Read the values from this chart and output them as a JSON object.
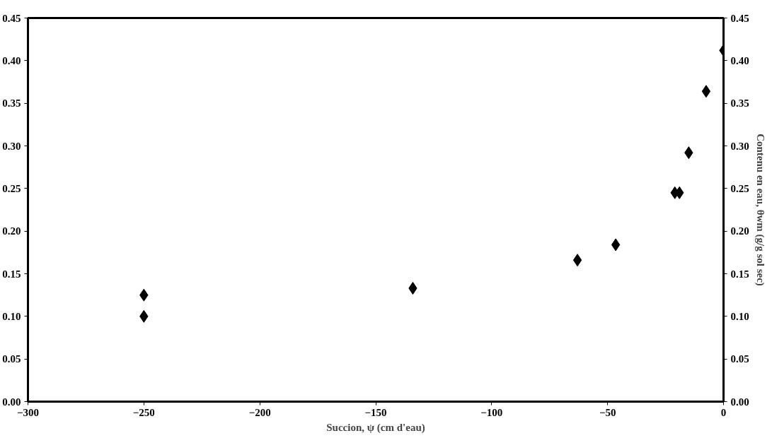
{
  "chart_data": {
    "type": "scatter",
    "xlabel": "Succion, ψ (cm d'eau)",
    "y2label": "Contenu en eau, θwm (g/g sol sec)",
    "x": [
      -250,
      -250,
      -134,
      -63,
      -46.5,
      -21,
      -19,
      -15,
      -7.5,
      0
    ],
    "series": [
      {
        "color": "#000000",
        "values": [
          0.125,
          0.1,
          0.133,
          0.166,
          0.184,
          0.245,
          0.245,
          0.292,
          0.364,
          0.412
        ]
      }
    ],
    "marker": "diamond",
    "grid": false,
    "xlim": [
      -300,
      0
    ],
    "xticks": [
      -300,
      -250,
      -200,
      -150,
      -100,
      -50,
      0
    ],
    "ylim": [
      0,
      0.45
    ],
    "yticks": [
      {
        "value": 0,
        "label": "0.00"
      },
      {
        "value": 0.05,
        "label": "0.05"
      },
      {
        "value": 0.1,
        "label": "0.10"
      },
      {
        "value": 0.15,
        "label": "0.15"
      },
      {
        "value": 0.2,
        "label": "0.20"
      },
      {
        "value": 0.25,
        "label": "0.25"
      },
      {
        "value": 0.3,
        "label": "0.30"
      },
      {
        "value": 0.35,
        "label": "0.35"
      },
      {
        "value": 0.4,
        "label": "0.40"
      },
      {
        "value": 0.45,
        "label": "0.45"
      }
    ],
    "y2lim": [
      0,
      0.45
    ],
    "y2ticks": [
      {
        "value": 0,
        "label": "0.00"
      },
      {
        "value": 0.05,
        "label": "0.05"
      },
      {
        "value": 0.1,
        "label": "0.10"
      },
      {
        "value": 0.15,
        "label": "0.15"
      },
      {
        "value": 0.2,
        "label": "0.20"
      },
      {
        "value": 0.25,
        "label": "0.25"
      },
      {
        "value": 0.3,
        "label": "0.30"
      },
      {
        "value": 0.35,
        "label": "0.35"
      },
      {
        "value": 0.4,
        "label": "0.40"
      },
      {
        "value": 0.45,
        "label": "0.45"
      }
    ]
  }
}
